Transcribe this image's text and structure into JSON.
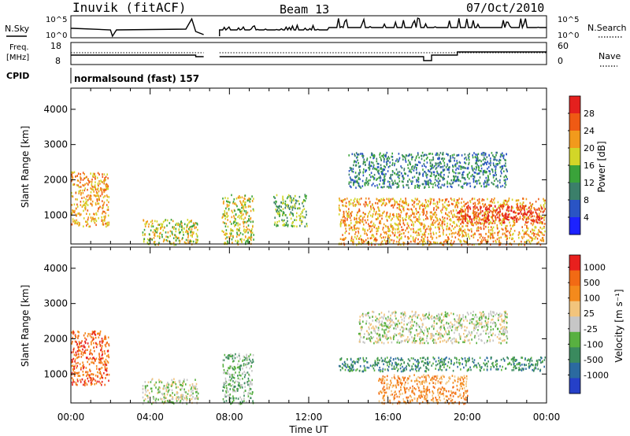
{
  "header": {
    "station": "Inuvik (fitACF)",
    "beam": "Beam 13",
    "date": "07/Oct/2010"
  },
  "nsky_panel": {
    "left_label": "N.Sky",
    "left_ticks": [
      "10^5",
      "10^0"
    ],
    "right_ticks": [
      "10^5",
      "10^0"
    ],
    "right_label": "N.Search",
    "right_style": "dotted"
  },
  "freq_panel": {
    "left_label_line1": "Freq.",
    "left_label_line2": "[MHz]",
    "left_ticks": [
      "18",
      "8"
    ],
    "right_ticks": [
      "60",
      "0"
    ],
    "right_label": "Nave",
    "right_style": "dotted"
  },
  "cpid": {
    "label": "CPID",
    "value": "normalsound (fast) 157"
  },
  "x_axis": {
    "title": "Time UT",
    "ticks": [
      "00:00",
      "04:00",
      "08:00",
      "12:00",
      "16:00",
      "20:00",
      "00:00"
    ],
    "range_hours": [
      0,
      24
    ]
  },
  "chart_data": [
    {
      "type": "heatmap",
      "ylabel": "Slant Range [km]",
      "yticks": [
        1000,
        2000,
        3000,
        4000
      ],
      "ylim": [
        180,
        4600
      ],
      "xlim_hours": [
        0,
        24
      ],
      "colorbar": {
        "title": "Power [dB]",
        "ticks": [
          "4",
          "8",
          "12",
          "16",
          "20",
          "24",
          "28"
        ],
        "colors": [
          "#1c22ff",
          "#2a54c4",
          "#3b7f6a",
          "#3aa33a",
          "#d2d628",
          "#f29a1c",
          "#ef5a14",
          "#e4201e"
        ]
      },
      "echo_regions": [
        {
          "t0": 0.0,
          "t1": 1.9,
          "r0": 700,
          "r1": 2250,
          "level": 5
        },
        {
          "t0": 3.6,
          "t1": 6.4,
          "r0": 180,
          "r1": 900,
          "level": 4
        },
        {
          "t0": 7.6,
          "t1": 9.2,
          "r0": 180,
          "r1": 1600,
          "level": 4
        },
        {
          "t0": 10.2,
          "t1": 11.9,
          "r0": 700,
          "r1": 1600,
          "level": 3
        },
        {
          "t0": 13.5,
          "t1": 23.9,
          "r0": 180,
          "r1": 1500,
          "level": 5
        },
        {
          "t0": 14.0,
          "t1": 22.0,
          "r0": 1800,
          "r1": 2800,
          "level": 2
        },
        {
          "t0": 19.5,
          "t1": 23.8,
          "r0": 800,
          "r1": 1300,
          "level": 7
        }
      ]
    },
    {
      "type": "heatmap",
      "ylabel": "Slant Range [km]",
      "yticks": [
        1000,
        2000,
        3000,
        4000
      ],
      "ylim": [
        180,
        4600
      ],
      "xlim_hours": [
        0,
        24
      ],
      "colorbar": {
        "title": "Velocity [m s⁻¹]",
        "ticks": [
          "1000",
          "500",
          "100",
          "25",
          "-25",
          "-100",
          "-500",
          "-1000"
        ],
        "colors": [
          "#2540c8",
          "#2b6aa0",
          "#3a8a5e",
          "#58b040",
          "#c6c6c6",
          "#f2c47c",
          "#f48a1c",
          "#f26a14",
          "#e8201e"
        ]
      },
      "echo_regions": [
        {
          "t0": 0.0,
          "t1": 1.9,
          "r0": 700,
          "r1": 2250,
          "level": 7
        },
        {
          "t0": 3.6,
          "t1": 6.4,
          "r0": 180,
          "r1": 900,
          "level": 4
        },
        {
          "t0": 7.6,
          "t1": 9.2,
          "r0": 180,
          "r1": 1600,
          "level": 3
        },
        {
          "t0": 13.5,
          "t1": 23.9,
          "r0": 1100,
          "r1": 1500,
          "level": 2
        },
        {
          "t0": 14.5,
          "t1": 22.0,
          "r0": 1900,
          "r1": 2800,
          "level": 4
        },
        {
          "t0": 15.5,
          "t1": 20.0,
          "r0": 180,
          "r1": 1000,
          "level": 6
        }
      ]
    }
  ]
}
